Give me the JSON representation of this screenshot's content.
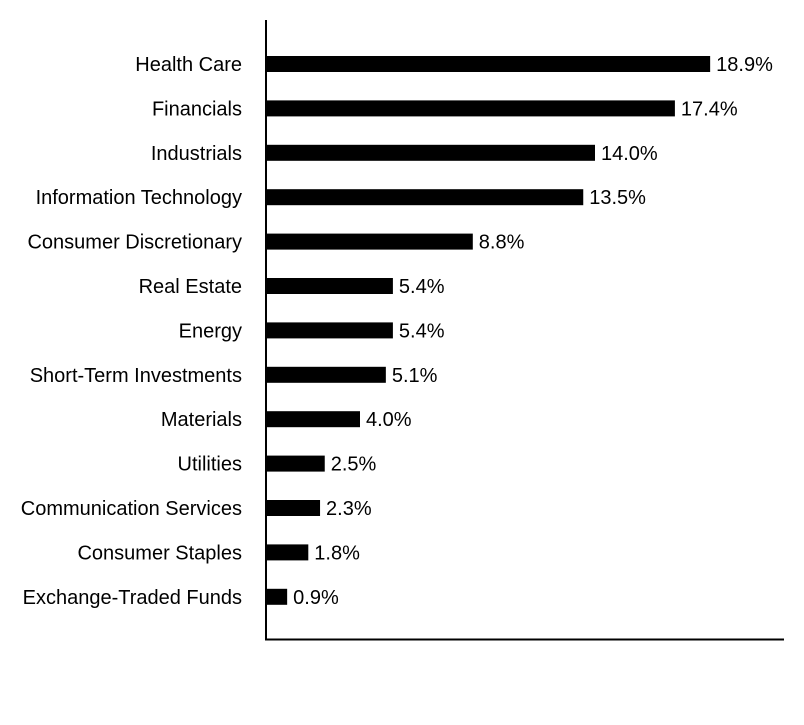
{
  "chart_data": {
    "type": "bar",
    "orientation": "horizontal",
    "categories": [
      "Health Care",
      "Financials",
      "Industrials",
      "Information Technology",
      "Consumer Discretionary",
      "Real Estate",
      "Energy",
      "Short-Term Investments",
      "Materials",
      "Utilities",
      "Communication Services",
      "Consumer Staples",
      "Exchange-Traded Funds"
    ],
    "values": [
      18.9,
      17.4,
      14.0,
      13.5,
      8.8,
      5.4,
      5.4,
      5.1,
      4.0,
      2.5,
      2.3,
      1.8,
      0.9
    ],
    "value_labels": [
      "18.9%",
      "17.4%",
      "14.0%",
      "13.5%",
      "8.8%",
      "5.4%",
      "5.4%",
      "5.1%",
      "4.0%",
      "2.5%",
      "2.3%",
      "1.8%",
      "0.9%"
    ],
    "title": "",
    "xlabel": "",
    "ylabel": "",
    "xlim": [
      0,
      22
    ],
    "grid": false,
    "legend": "none",
    "bar_color": "#000000",
    "axis_color": "#000000"
  }
}
